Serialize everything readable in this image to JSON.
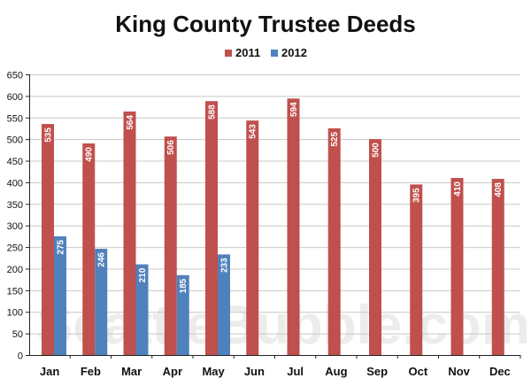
{
  "chart_data": {
    "type": "bar",
    "title": "King County Trustee Deeds",
    "xlabel": "",
    "ylabel": "",
    "ylim": [
      0,
      650
    ],
    "ytick_step": 50,
    "grid": true,
    "legend_position": "top-center",
    "categories": [
      "Jan",
      "Feb",
      "Mar",
      "Apr",
      "May",
      "Jun",
      "Jul",
      "Aug",
      "Sep",
      "Oct",
      "Nov",
      "Dec"
    ],
    "series": [
      {
        "name": "2011",
        "color": "#c0504d",
        "values": [
          535,
          490,
          564,
          506,
          588,
          543,
          594,
          525,
          500,
          395,
          410,
          408
        ]
      },
      {
        "name": "2012",
        "color": "#4f81bd",
        "values": [
          275,
          246,
          210,
          185,
          233,
          null,
          null,
          null,
          null,
          null,
          null,
          null
        ]
      }
    ]
  },
  "watermark": "SeattleBubble.com"
}
